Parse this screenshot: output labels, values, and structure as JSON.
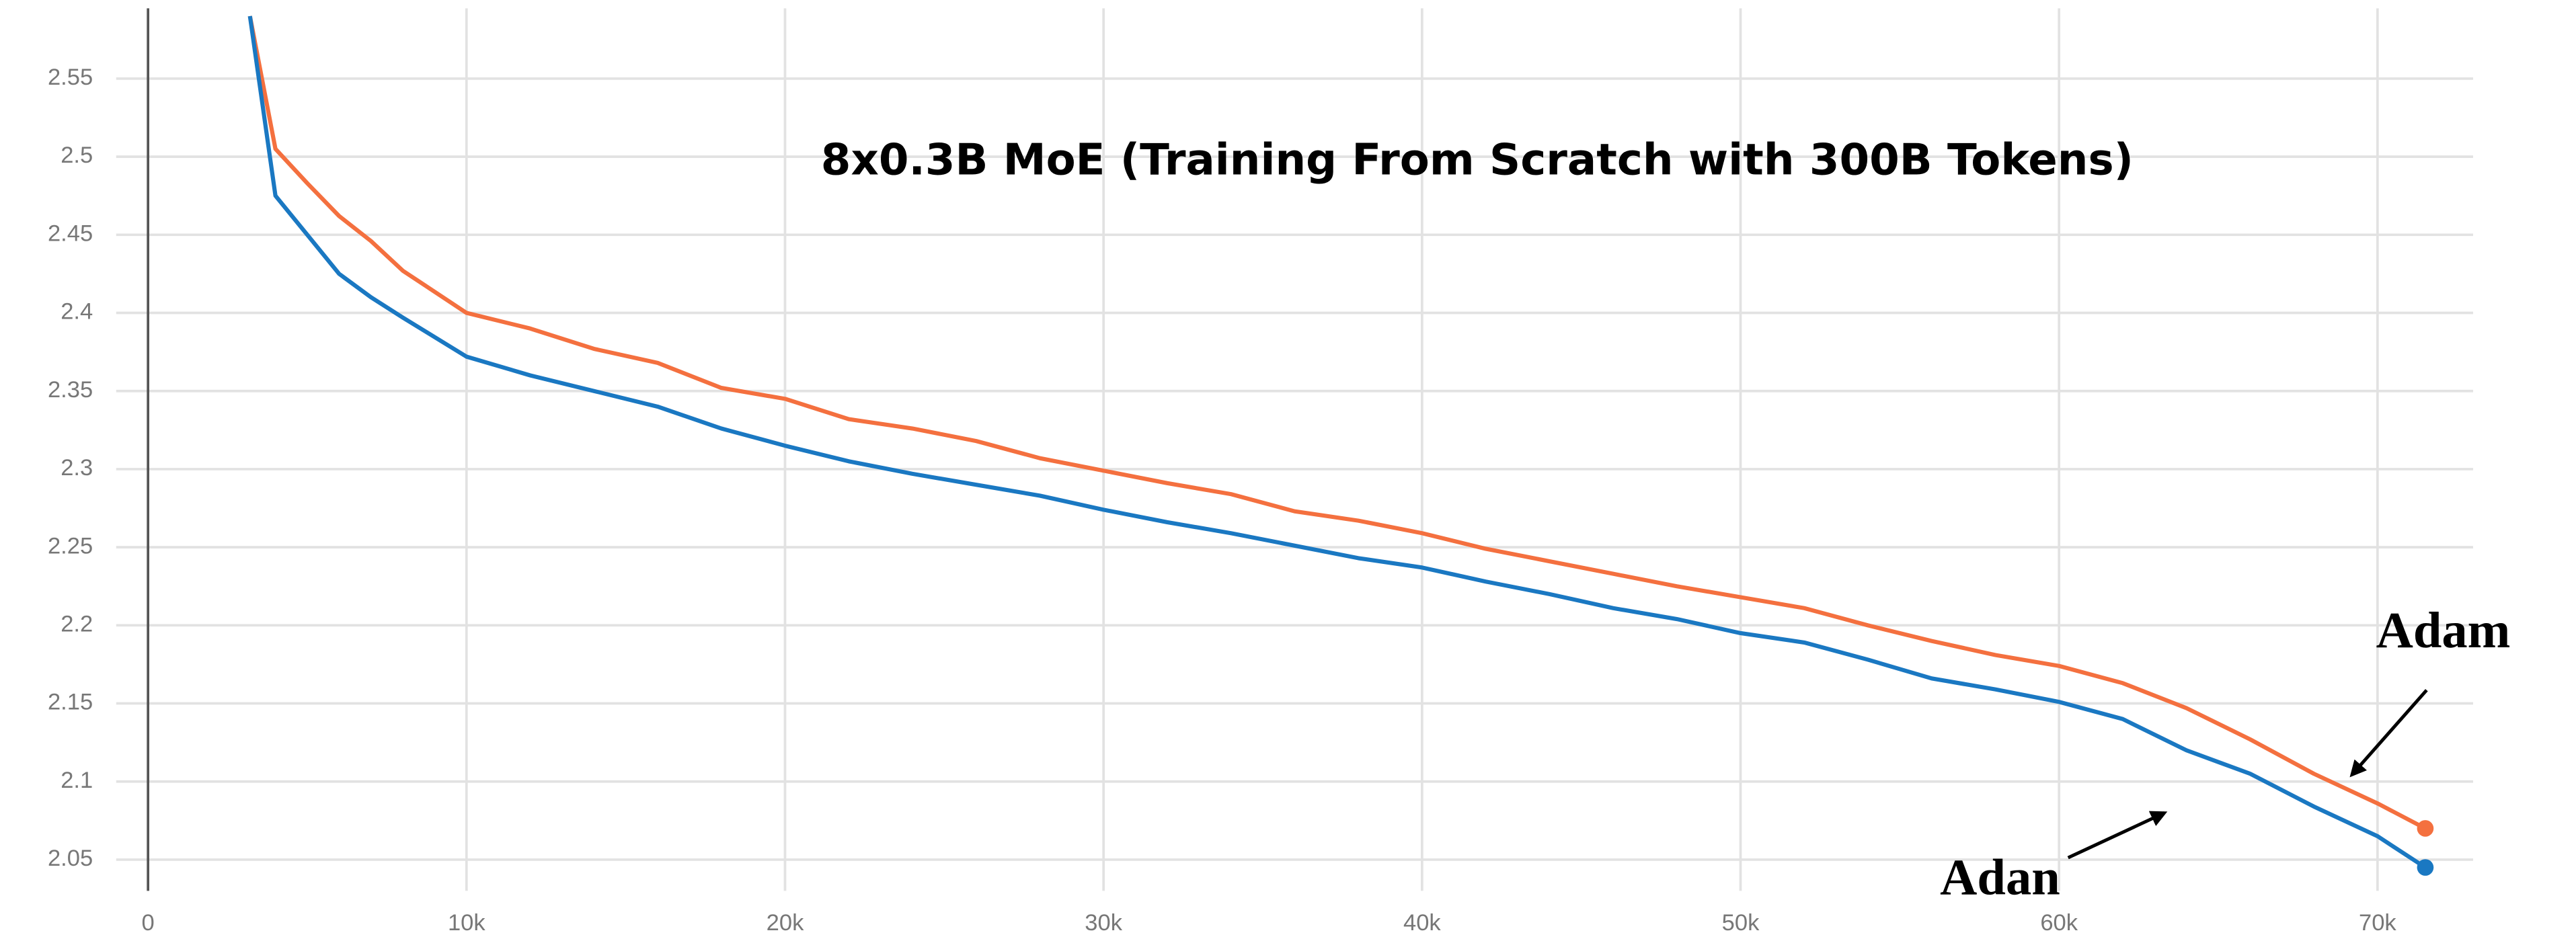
{
  "chart_data": {
    "type": "line",
    "title": "8x0.3B MoE (Training From Scratch with 300B Tokens)",
    "annotations": [
      "Adam",
      "Adan"
    ],
    "x": [
      3200,
      4000,
      5000,
      6000,
      7000,
      8000,
      10000,
      12000,
      14000,
      16000,
      18000,
      20000,
      22000,
      24000,
      26000,
      28000,
      30000,
      32000,
      34000,
      36000,
      38000,
      40000,
      42000,
      44000,
      46000,
      48000,
      50000,
      52000,
      54000,
      56000,
      58000,
      60000,
      62000,
      64000,
      66000,
      68000,
      70000,
      71500
    ],
    "series": [
      {
        "name": "Adam",
        "color": "#f4703f",
        "values": [
          2.59,
          2.505,
          2.483,
          2.462,
          2.446,
          2.427,
          2.4,
          2.39,
          2.377,
          2.368,
          2.352,
          2.345,
          2.332,
          2.326,
          2.318,
          2.307,
          2.299,
          2.291,
          2.284,
          2.273,
          2.267,
          2.259,
          2.249,
          2.241,
          2.233,
          2.225,
          2.218,
          2.211,
          2.2,
          2.19,
          2.181,
          2.174,
          2.163,
          2.147,
          2.127,
          2.105,
          2.086,
          2.07
        ]
      },
      {
        "name": "Adan",
        "color": "#1a78c2",
        "values": [
          2.59,
          2.475,
          2.45,
          2.425,
          2.41,
          2.397,
          2.372,
          2.36,
          2.35,
          2.34,
          2.326,
          2.315,
          2.305,
          2.297,
          2.29,
          2.283,
          2.274,
          2.266,
          2.259,
          2.251,
          2.243,
          2.237,
          2.228,
          2.22,
          2.211,
          2.204,
          2.195,
          2.189,
          2.178,
          2.166,
          2.159,
          2.151,
          2.14,
          2.12,
          2.105,
          2.084,
          2.065,
          2.045
        ]
      }
    ],
    "xlim": [
      -1000,
      73000
    ],
    "xticks": [
      0,
      {
        "value": 10000,
        "label": "10k"
      },
      {
        "value": 20000,
        "label": "20k"
      },
      {
        "value": 30000,
        "label": "30k"
      },
      {
        "value": 40000,
        "label": "40k"
      },
      {
        "value": 50000,
        "label": "50k"
      },
      {
        "value": 60000,
        "label": "60k"
      },
      {
        "value": 70000,
        "label": "70k"
      }
    ],
    "ylim": [
      2.03,
      2.595
    ],
    "yticks": [
      2.05,
      2.1,
      2.15,
      2.2,
      2.25,
      2.3,
      2.35,
      2.4,
      2.45,
      2.5,
      2.55
    ],
    "grid": true
  }
}
